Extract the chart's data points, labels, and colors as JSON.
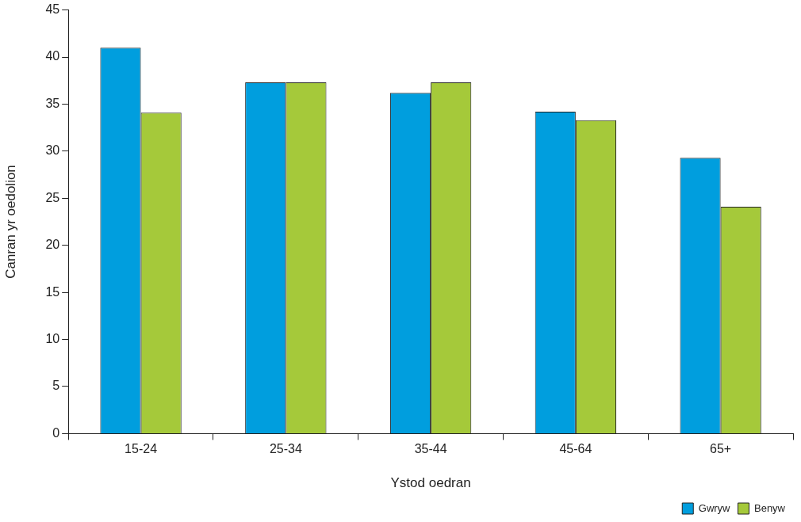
{
  "chart_data": {
    "type": "bar",
    "xlabel": "Ystod oedran",
    "ylabel": "Canran yr oedolion",
    "categories": [
      "15-24",
      "25-34",
      "35-44",
      "45-64",
      "65+"
    ],
    "series": [
      {
        "name": "Gwryw",
        "color": "#009ede",
        "values": [
          41.0,
          37.3,
          36.2,
          34.2,
          29.3
        ]
      },
      {
        "name": "Benyw",
        "color": "#a5c93a",
        "values": [
          34.1,
          37.3,
          37.3,
          33.3,
          24.1
        ]
      }
    ],
    "ylim": [
      0,
      45
    ],
    "yticks": [
      0,
      5,
      10,
      15,
      20,
      25,
      30,
      35,
      40,
      45
    ],
    "grid": false,
    "legend": "bottom right"
  }
}
